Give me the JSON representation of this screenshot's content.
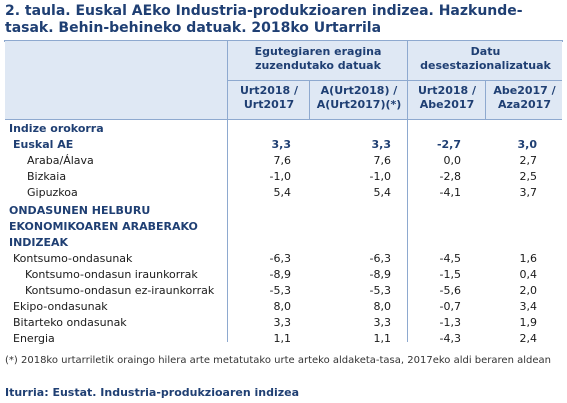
{
  "title": "2. taula. Euskal AEko Industria-produkzioaren indizea. Hazkunde-tasak. Behin-behineko datuak. 2018ko Urtarrila",
  "headers": {
    "group1": "Egutegiaren eragina zuzendutako datuak",
    "group2": "Datu desestazionalizatuak",
    "col1": "Urt2018 / Urt2017",
    "col2": "A(Urt2018) / A(Urt2017)(*)",
    "col3": "Urt2018 / Abe2017",
    "col4": "Abe2017 / Aza2017"
  },
  "rows": [
    {
      "label": "Indize orokorra",
      "type": "section"
    },
    {
      "label": "Euskal AE",
      "type": "bold",
      "v": [
        "3,3",
        "3,3",
        "-2,7",
        "3,0"
      ]
    },
    {
      "label": "Araba/Álava",
      "type": "sub",
      "v": [
        "7,6",
        "7,6",
        "0,0",
        "2,7"
      ]
    },
    {
      "label": "Bizkaia",
      "type": "sub",
      "v": [
        "-1,0",
        "-1,0",
        "-2,8",
        "2,5"
      ]
    },
    {
      "label": "Gipuzkoa",
      "type": "sub",
      "v": [
        "5,4",
        "5,4",
        "-4,1",
        "3,7"
      ]
    },
    {
      "label": "ONDASUNEN HELBURU",
      "type": "section"
    },
    {
      "label": "EKONOMIKOAREN ARABERAKO",
      "type": "section"
    },
    {
      "label": "INDIZEAK",
      "type": "section"
    },
    {
      "label": "Kontsumo-ondasunak",
      "type": "lvl1",
      "v": [
        "-6,3",
        "-6,3",
        "-4,5",
        "1,6"
      ]
    },
    {
      "label": "Kontsumo-ondasun iraunkorrak",
      "type": "lvl2",
      "v": [
        "-8,9",
        "-8,9",
        "-1,5",
        "0,4"
      ]
    },
    {
      "label": "Kontsumo-ondasun ez-iraunkorrak",
      "type": "lvl2",
      "v": [
        "-5,3",
        "-5,3",
        "-5,6",
        "2,0"
      ]
    },
    {
      "label": "Ekipo-ondasunak",
      "type": "lvl1",
      "v": [
        "8,0",
        "8,0",
        "-0,7",
        "3,4"
      ]
    },
    {
      "label": "Bitarteko ondasunak",
      "type": "lvl1",
      "v": [
        "3,3",
        "3,3",
        "-1,3",
        "1,9"
      ]
    },
    {
      "label": "Energia",
      "type": "lvl1",
      "v": [
        "1,1",
        "1,1",
        "-4,3",
        "2,4"
      ]
    }
  ],
  "footnote": "(*) 2018ko urtarriletik oraingo hilera arte metatutako urte arteko aldaketa-tasa, 2017eko aldi beraren aldean",
  "source": "Iturria: Eustat. Industria-produkzioaren indizea"
}
